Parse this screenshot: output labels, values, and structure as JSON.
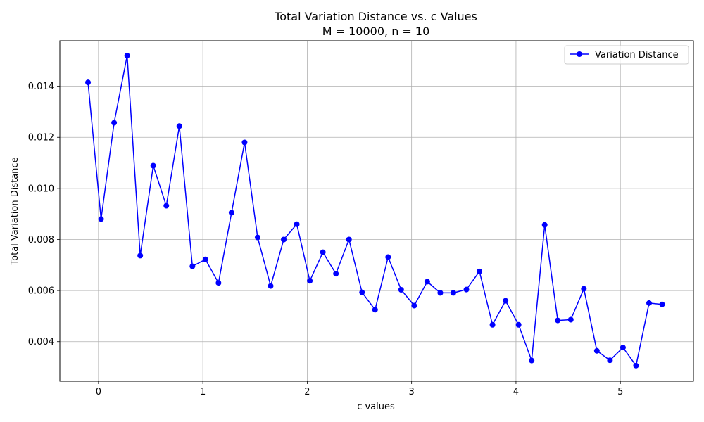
{
  "chart_data": {
    "type": "line",
    "title": "Total Variation Distance vs. c Values",
    "subtitle": "M = 10000, n = 10",
    "xlabel": "c values",
    "ylabel": "Total Variation Distance",
    "xlim": [
      -0.37,
      5.7
    ],
    "ylim": [
      0.00245,
      0.01578
    ],
    "xticks": [
      0,
      1,
      2,
      3,
      4,
      5
    ],
    "xtick_labels": [
      "0",
      "1",
      "2",
      "3",
      "4",
      "5"
    ],
    "yticks": [
      0.004,
      0.006,
      0.008,
      0.01,
      0.012,
      0.014
    ],
    "ytick_labels": [
      "0.004",
      "0.006",
      "0.008",
      "0.010",
      "0.012",
      "0.014"
    ],
    "grid": true,
    "legend": {
      "position": "top-right",
      "entries": [
        "Variation Distance"
      ]
    },
    "series": [
      {
        "name": "Variation Distance",
        "color": "#0000ff",
        "marker": "circle",
        "x": [
          -0.1,
          0.025,
          0.15,
          0.275,
          0.4,
          0.525,
          0.65,
          0.775,
          0.9,
          1.025,
          1.15,
          1.275,
          1.4,
          1.525,
          1.65,
          1.775,
          1.9,
          2.025,
          2.15,
          2.275,
          2.4,
          2.525,
          2.65,
          2.775,
          2.9,
          3.025,
          3.15,
          3.275,
          3.4,
          3.525,
          3.65,
          3.775,
          3.9,
          4.025,
          4.15,
          4.275,
          4.4,
          4.525,
          4.65,
          4.775,
          4.9,
          5.025,
          5.15,
          5.275,
          5.4
        ],
        "y": [
          0.01415,
          0.0088,
          0.01257,
          0.0152,
          0.00737,
          0.01089,
          0.00932,
          0.01244,
          0.00695,
          0.00722,
          0.0063,
          0.00905,
          0.0118,
          0.00808,
          0.00618,
          0.008,
          0.0086,
          0.00638,
          0.0075,
          0.00666,
          0.008,
          0.00593,
          0.00525,
          0.00731,
          0.00603,
          0.00541,
          0.00635,
          0.00591,
          0.00591,
          0.00604,
          0.00675,
          0.00466,
          0.0056,
          0.00466,
          0.00326,
          0.00857,
          0.00483,
          0.00486,
          0.00607,
          0.00364,
          0.00327,
          0.00377,
          0.00306,
          0.00551,
          0.00546
        ]
      }
    ]
  }
}
